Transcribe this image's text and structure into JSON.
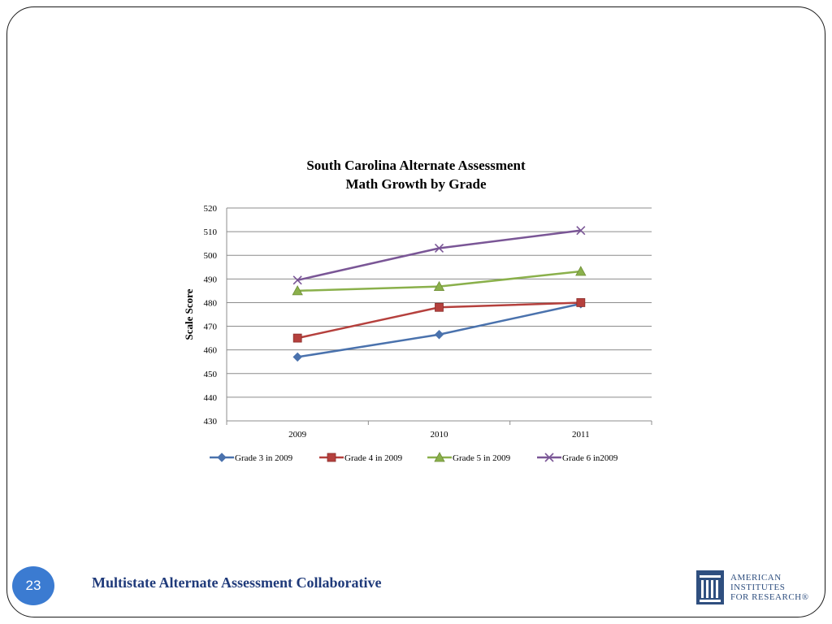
{
  "chart_data": {
    "type": "line",
    "title_lines": [
      "South Carolina Alternate Assessment",
      "Math Growth by Grade"
    ],
    "xlabel": "",
    "ylabel": "Scale Score",
    "categories": [
      "2009",
      "2010",
      "2011"
    ],
    "ylim": [
      430,
      520
    ],
    "yticks": [
      430,
      440,
      450,
      460,
      470,
      480,
      490,
      500,
      510,
      520
    ],
    "grid": true,
    "legend": "bottom",
    "series": [
      {
        "name": "Grade 3 in 2009",
        "values": [
          457,
          466.5,
          479.5
        ],
        "color": "#4a72ad",
        "marker": "diamond"
      },
      {
        "name": "Grade 4 in 2009",
        "values": [
          465,
          478,
          480
        ],
        "color": "#b5403d",
        "marker": "square"
      },
      {
        "name": "Grade 5 in 2009",
        "values": [
          485,
          486.8,
          493.2
        ],
        "color": "#8ab04b",
        "marker": "triangle"
      },
      {
        "name": "Grade 6 in2009",
        "values": [
          489.5,
          503,
          510.5
        ],
        "color": "#7a5696",
        "marker": "x"
      }
    ]
  },
  "footer": {
    "slide_number": "23",
    "title": "Multistate Alternate Assessment Collaborative"
  },
  "logo": {
    "line1": "AMERICAN",
    "line2": "INSTITUTES",
    "line3": "FOR RESEARCH®"
  }
}
